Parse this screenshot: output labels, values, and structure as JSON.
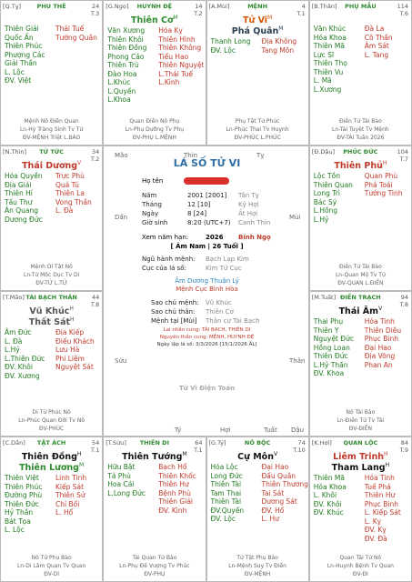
{
  "cells": [
    {
      "code": "[Q.Tỵ]",
      "palace": "PHU THÊ",
      "age": "24",
      "tag": "T.3",
      "main": [],
      "left": [
        "Thiên Giải",
        "Quốc Ấn",
        "Thiên Phúc",
        "Phượng Các",
        "Giải Thần",
        "L. Lộc",
        "ĐV. Việt"
      ],
      "right": [
        "Thái Tuế",
        "Tướng Quân"
      ],
      "foot": [
        "Mệnh Nô Điền Quan",
        "Ln-Hỷ Tràng Sinh Tv Tử",
        "ĐV-MỆNH Triệt L.BÁO"
      ]
    },
    {
      "code": "[G.Ngọ]",
      "palace": "HUYNH ĐỆ",
      "age": "14",
      "tag": "T.2",
      "main": [
        {
          "name": "Thiên Cơ",
          "mk": "M",
          "color": "#2e8b2e"
        }
      ],
      "left": [
        "Văn Xương",
        "Thiên Khôi",
        "Thiên Đồng",
        "Phong Cáo",
        "Thiên Trù",
        "Đào Hoa",
        "L.Khúc",
        "L.Quyền",
        "L.Khoa"
      ],
      "right": [
        "Hóa Kỵ",
        "Thiên Hình",
        "Thiên Không",
        "Tiểu Hao",
        "Thiên Nguyệt",
        "L.Thái Tuế",
        "L.Kình"
      ],
      "foot": [
        "Quan Điền Nô Phụ",
        "Ln-Phụ Dưỡng Tv Phụ",
        "ĐV-PHỤ L.MỆNH"
      ]
    },
    {
      "code": "[A.Mùi]",
      "palace": "MỆNH",
      "age": "4",
      "tag": "T.1",
      "main": [
        {
          "name": "Tử Vi",
          "mk": "M",
          "color": "#d35400"
        },
        {
          "name": "Phá Quân",
          "mk": "M",
          "color": "#2c3e50"
        }
      ],
      "left": [
        "Thanh Long",
        "ĐV. Lộc"
      ],
      "right": [
        "Địa Không",
        "Tang Môn"
      ],
      "foot": [
        "Phụ Tật Tử Phúc",
        "Ln-Phúc Thai Tv Huynh",
        "ĐV-PHÚC L.PHÚC"
      ]
    },
    {
      "code": "[B.Thân]",
      "palace": "PHỤ MẪU",
      "age": "114",
      "tag": "T.6",
      "main": [],
      "left": [
        "Văn Khúc",
        "Hóa Khoa",
        "Thiên Mã",
        "Lực Sĩ",
        "Thiên Thọ",
        "Thiên Vu",
        "L. Mã",
        "L.Xương"
      ],
      "right": [
        "Đà La",
        "Cô Thần",
        "Âm Sát",
        "L. Tang"
      ],
      "foot": [
        "Điền Tử Tài Bào",
        "Ln-Tài Tuyệt Tv Mệnh",
        "ĐV-TÀI Tuần 2026"
      ]
    },
    {
      "code": "[N.Thìn]",
      "palace": "TỬ TỨC",
      "age": "34",
      "tag": "T.2",
      "main": [
        {
          "name": "Thái Dương",
          "mk": "V",
          "color": "#c0392b"
        }
      ],
      "left": [
        "Hóa Quyền",
        "Địa Giải",
        "Thiên Hỉ",
        "Tấu Thư",
        "Ân Quang",
        "Dương Đức"
      ],
      "right": [
        "Trực Phù",
        "Quả Tú",
        "Thiên La",
        "Vong Thần",
        "L. Đà"
      ],
      "foot": [
        "Mệnh Di Tật Nô",
        "Ln-Tử Mộc Dục Tv Di",
        "ĐV-TỬ L.TỬ"
      ]
    },
    {
      "code": "[Đ.Dậu]",
      "palace": "PHÚC ĐỨC",
      "age": "104",
      "tag": "T.7",
      "main": [
        {
          "name": "Thiên Phủ",
          "mk": "H",
          "color": "#c0392b"
        }
      ],
      "left": [
        "Lộc Tồn",
        "Thiên Quan",
        "Long Trì",
        "Bác Sỹ",
        "L.Hồng",
        "L.Hỷ"
      ],
      "right": [
        "Quan Phù",
        "Phá Toái",
        "Tướng Tinh"
      ],
      "foot": [
        "Điền Tử Tài Bào",
        "Ln-Quan Mộ Tv Tử",
        "ĐV-QUAN L.ĐIỀN"
      ]
    },
    {
      "code": "[T.Mão]",
      "palace": "TÀI BẠCH THÂN",
      "age": "44",
      "tag": "T.8",
      "main": [
        {
          "name": "Vũ Khúc",
          "mk": "H",
          "color": "#555"
        },
        {
          "name": "Thất Sát",
          "mk": "H",
          "color": "#555"
        }
      ],
      "left": [
        "Âm Đức",
        "L. Đà",
        "L.Hỷ",
        "L.Thiên Đức",
        "ĐV. Khôi",
        "ĐV. Xương"
      ],
      "right": [
        "Địa Kiếp",
        "Điếu Khách",
        "Lưu Hà",
        "Phi Liêm",
        "Nguyệt Sát"
      ],
      "foot": [
        "Di Tử Phúc Nô",
        "Ln-Phúc Quan Đới Tv Nô",
        "ĐV-PHÚC"
      ]
    },
    {
      "code": "[M.Tuất]",
      "palace": "ĐIỀN TRẠCH",
      "age": "94",
      "tag": "T.8",
      "main": [
        {
          "name": "Thái Âm",
          "mk": "V",
          "color": "#111"
        }
      ],
      "left": [
        "Thai Phụ",
        "Thiên Y",
        "Nguyệt Đức",
        "Hồng Loan",
        "Thiên Đức",
        "L.Hỷ Thần",
        "ĐV. Khoa"
      ],
      "right": [
        "Hỏa Tinh",
        "Thiên Diêu",
        "Phục Binh",
        "Đại Hao",
        "Địa Võng",
        "Phan An"
      ],
      "foot": [
        "Nô Tài Bào",
        "Ln-Điền Tử Tv Tài",
        "ĐV-ĐIỀN"
      ]
    },
    {
      "code": "[C.Dần]",
      "palace": "TẬT ÁCH",
      "age": "54",
      "tag": "T.1",
      "main": [
        {
          "name": "Thiên Đồng",
          "mk": "H",
          "color": "#111"
        },
        {
          "name": "Thiên Lương",
          "mk": "M",
          "color": "#2e8b2e"
        }
      ],
      "left": [
        "Thiên Việt",
        "Thiên Phúc",
        "Đường Phù",
        "Thiên Đức",
        "Hỷ Thần",
        "Bát Tọa",
        "L. Lộc"
      ],
      "right": [
        "Linh Tinh",
        "Kiếp Sát",
        "Thiên Sứ",
        "Chỉ Bối",
        "L. Hổ"
      ],
      "foot": [
        "Nô Tử Phụ Bào",
        "Ln-Di Lâm Quan Tv Quan",
        "ĐV-DI"
      ]
    },
    {
      "code": "[T.Sửu]",
      "palace": "THIÊN DI",
      "age": "64",
      "tag": "T.1",
      "main": [
        {
          "name": "Thiên Tướng",
          "mk": "M",
          "color": "#111"
        }
      ],
      "left": [
        "Hữu Bật",
        "Tả Phù",
        "Hoa Cái",
        "L.Long Đức"
      ],
      "right": [
        "Bạch Hổ",
        "Thiên Khốc",
        "Thiên Hư",
        "Bệnh Phù",
        "Thiên Giải",
        "ĐV. Kình"
      ],
      "foot": [
        "Tài Quan Tử Bào",
        "Ln-Phụ Đế Vượng Tv Phúc",
        "ĐV-PHỤ"
      ]
    },
    {
      "code": "[G.Tý]",
      "palace": "NÔ BỘC",
      "age": "74",
      "tag": "T.10",
      "main": [
        {
          "name": "Cự Môn",
          "mk": "V",
          "color": "#111"
        }
      ],
      "left": [
        "Hóa Lộc",
        "Long Đức",
        "Thiên Tài",
        "Tam Thai",
        "Thiên Tài",
        "ĐV.Quyền",
        "ĐV. Lộc"
      ],
      "right": [
        "Đại Hao",
        "Đẩu Quân",
        "Thiên Thương",
        "Tai Sát",
        "Dương Sát",
        "ĐV. Hổ",
        "L. Hư"
      ],
      "foot": [
        "Tử Tật Phụ Bào",
        "Ln-Mệnh Suy Tv Điền",
        "ĐV-MỆNH"
      ]
    },
    {
      "code": "[K.Hợi]",
      "palace": "QUAN LỘC",
      "age": "84",
      "tag": "T.9",
      "main": [
        {
          "name": "Liêm Trinh",
          "mk": "H",
          "color": "#c0392b"
        },
        {
          "name": "Tham Lang",
          "mk": "H",
          "color": "#111"
        }
      ],
      "left": [
        "Thiên Mã",
        "Hóa Khoa",
        "L. Khôi",
        "ĐV. Khôi",
        "ĐV. Khúc"
      ],
      "right": [
        "Hỏa Tinh",
        "Tuế Phá",
        "Thiên Hư",
        "Phục Binh",
        "L. Kiếp Sát",
        "L. Kỵ",
        "ĐV. Kỵ",
        "ĐV. Đà"
      ],
      "foot": [
        "Quan Tài Tử Nô",
        "Ln-Huynh Bệnh Tv Quan",
        "ĐV-ĐI"
      ]
    }
  ],
  "center": {
    "title": "LÁ SỐ TỬ VI",
    "name_label": "Họ tên",
    "rows": [
      [
        "Năm",
        "2001 [2001]",
        "Tân Tỵ"
      ],
      [
        "Tháng",
        "12 [10]",
        "Kỷ Hợi"
      ],
      [
        "Ngày",
        "8 [24]",
        "Ất Hợi"
      ],
      [
        "Giờ sinh",
        "8:20 (UTC+7)",
        "Canh Thìn"
      ]
    ],
    "year_label": "Xem năm hạn:",
    "year": "2026",
    "year_can": "Bính Ngọ",
    "age_info": "[ Âm Nam | 26 Tuổi ]",
    "info": [
      [
        "Ngũ hành mệnh:",
        "Bạch Lạp Kim"
      ],
      [
        "Cục của lá số:",
        "Kim Tứ Cục"
      ]
    ],
    "notes": [
      "Âm Dương Thuận Lý",
      "Mệnh Cục Bình Hòa"
    ],
    "info2": [
      [
        "Sao chủ mệnh:",
        "Vũ Khúc"
      ],
      [
        "Sao chủ thân:",
        "Thiên Cơ"
      ],
      [
        "Mệnh tại [Mùi]",
        "Thân cư Tài Bạch"
      ]
    ],
    "small": [
      "Lai nhân cung: TÀI BẠCH, THIÊN DI",
      "Nguyên thần cung: MỆNH, HUYNH ĐỆ",
      "Ngày lập lá số: 3/3/2026 [15/1/2026 ÂL]"
    ],
    "brand": "Tử Vi Điện Toán",
    "branches": [
      "Mão",
      "Thìn",
      "Tỵ",
      "Dần",
      "Mùi",
      "Sửu",
      "Thân",
      "Tý",
      "Hợi",
      "Tuất",
      "Dậu"
    ]
  }
}
